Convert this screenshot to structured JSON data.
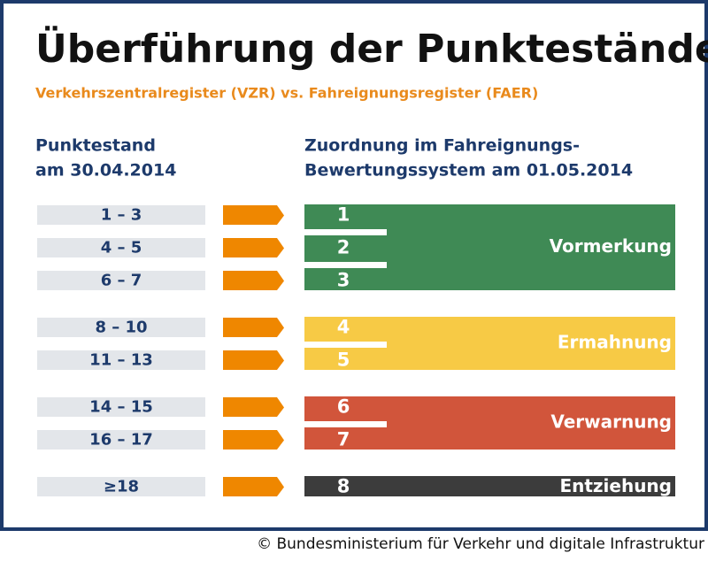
{
  "title": "Überführung der Punktestände",
  "subtitle": "Verkehrszentralregister (VZR) vs. Fahreignungsregister (FAER)",
  "left_header": [
    "Punktestand",
    "am 30.04.2014"
  ],
  "right_header": [
    "Zuordnung im Fahreignungs-",
    "Bewertungssystem am 01.05.2014"
  ],
  "groups": [
    {
      "label": "Vormerkung",
      "color": "#3f8a55",
      "rows": [
        {
          "range": "1 – 3",
          "points": 1
        },
        {
          "range": "4 – 5",
          "points": 2
        },
        {
          "range": "6 – 7",
          "points": 3
        }
      ]
    },
    {
      "label": "Ermahnung",
      "color": "#f7ca45",
      "rows": [
        {
          "range": "8 – 10",
          "points": 4
        },
        {
          "range": "11 – 13",
          "points": 5
        }
      ]
    },
    {
      "label": "Verwarnung",
      "color": "#d1553b",
      "rows": [
        {
          "range": "14 – 15",
          "points": 6
        },
        {
          "range": "16 – 17",
          "points": 7
        }
      ]
    },
    {
      "label": "Entziehung",
      "color": "#3c3c3c",
      "rows": [
        {
          "range": "≥18",
          "points": 8
        }
      ]
    }
  ],
  "footer": "© Bundesministerium für Verkehr und digitale Infrastruktur"
}
